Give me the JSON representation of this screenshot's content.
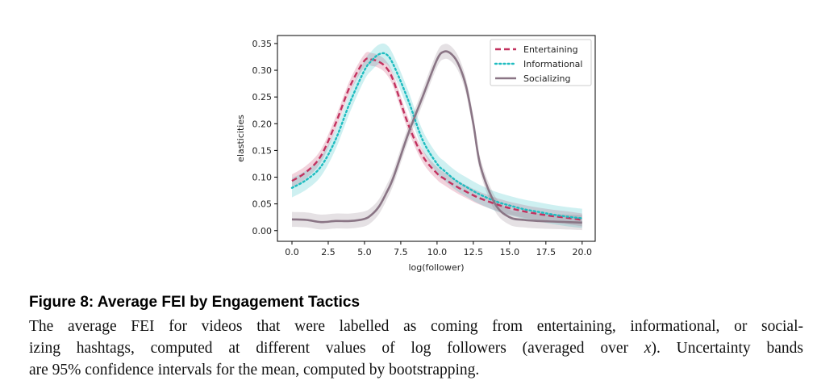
{
  "figure": {
    "caption_title": "Figure 8: Average FEI by Engagement Tactics",
    "caption_line1": "The average FEI for videos that were labelled as coming from entertaining, informational, or social-",
    "caption_line2_a": "izing hashtags, computed at different values of log followers (averaged over ",
    "caption_line2_var": "x",
    "caption_line2_b": ").  Uncertainty bands",
    "caption_line3": "are 95% confidence intervals for the mean, computed by bootstrapping."
  },
  "chart_data": {
    "type": "line",
    "xlabel": "log(follower)",
    "ylabel": "elasticities",
    "xlim": [
      -1,
      20.9
    ],
    "ylim": [
      -0.02,
      0.365
    ],
    "xticks": [
      "0.0",
      "2.5",
      "5.0",
      "7.5",
      "10.0",
      "12.5",
      "15.0",
      "17.5",
      "20.0"
    ],
    "yticks": [
      "0.00",
      "0.05",
      "0.10",
      "0.15",
      "0.20",
      "0.25",
      "0.30",
      "0.35"
    ],
    "grid": false,
    "legend_position": "top-right",
    "x": [
      0,
      1,
      2,
      3,
      4,
      5,
      5.5,
      6,
      6.5,
      7,
      8,
      9,
      10,
      10.5,
      11,
      11.5,
      12,
      12.5,
      13,
      14,
      15,
      16,
      17,
      18,
      19,
      20
    ],
    "series": [
      {
        "name": "Entertaining",
        "color": "#c2325f",
        "style": "dashed",
        "values": [
          0.093,
          0.11,
          0.14,
          0.2,
          0.27,
          0.318,
          0.32,
          0.316,
          0.305,
          0.28,
          0.2,
          0.14,
          0.107,
          0.097,
          0.088,
          0.08,
          0.073,
          0.066,
          0.06,
          0.05,
          0.042,
          0.036,
          0.031,
          0.027,
          0.024,
          0.02
        ],
        "band_half_width": 0.012
      },
      {
        "name": "Informational",
        "color": "#1fbcc0",
        "style": "dotted",
        "values": [
          0.08,
          0.095,
          0.12,
          0.17,
          0.24,
          0.3,
          0.318,
          0.33,
          0.33,
          0.31,
          0.245,
          0.17,
          0.125,
          0.112,
          0.1,
          0.09,
          0.082,
          0.074,
          0.067,
          0.055,
          0.047,
          0.04,
          0.035,
          0.03,
          0.026,
          0.023
        ],
        "band_half_width": 0.018
      },
      {
        "name": "Socializing",
        "color": "#8a7585",
        "style": "solid",
        "values": [
          0.021,
          0.02,
          0.016,
          0.018,
          0.018,
          0.022,
          0.03,
          0.045,
          0.07,
          0.1,
          0.18,
          0.25,
          0.32,
          0.335,
          0.33,
          0.31,
          0.27,
          0.2,
          0.12,
          0.05,
          0.025,
          0.02,
          0.018,
          0.017,
          0.016,
          0.015
        ],
        "band_half_width": 0.014
      }
    ]
  }
}
